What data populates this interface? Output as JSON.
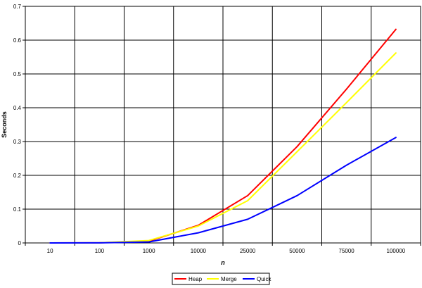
{
  "chart_data": {
    "type": "line",
    "title": "",
    "xlabel": "n",
    "ylabel": "Seconds",
    "categories": [
      "10",
      "100",
      "1000",
      "10000",
      "25000",
      "50000",
      "75000",
      "100000"
    ],
    "ylim": [
      0,
      0.7
    ],
    "yticks": [
      "0",
      "0.1",
      "0.2",
      "0.3",
      "0.4",
      "0.5",
      "0.6",
      "0.7"
    ],
    "grid": true,
    "legend_position": "bottom",
    "series": [
      {
        "name": "Heap",
        "color": "#ff0000",
        "values": [
          0,
          0.0005,
          0.005,
          0.052,
          0.14,
          0.285,
          0.455,
          0.632
        ]
      },
      {
        "name": "Merge",
        "color": "#ffff00",
        "values": [
          0,
          0.0005,
          0.007,
          0.05,
          0.125,
          0.27,
          0.415,
          0.562
        ]
      },
      {
        "name": "Quick",
        "color": "#0000ff",
        "values": [
          0,
          0.0002,
          0.003,
          0.03,
          0.07,
          0.14,
          0.23,
          0.312
        ]
      }
    ]
  }
}
